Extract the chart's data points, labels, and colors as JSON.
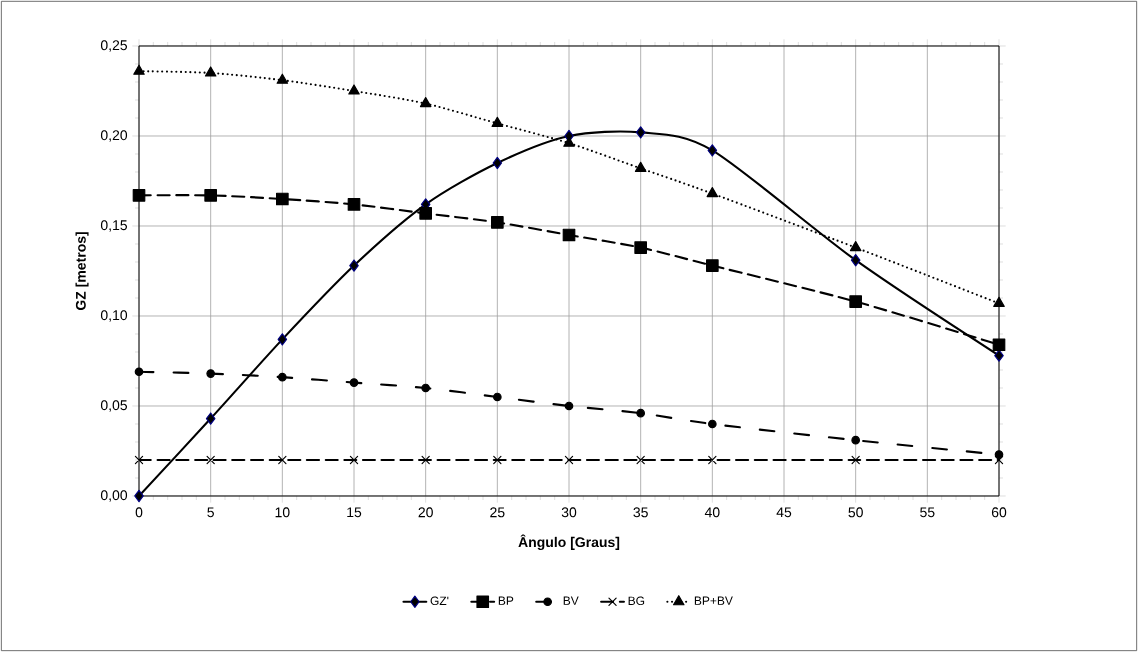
{
  "chart_data": {
    "type": "line",
    "xlabel": "Ângulo [Graus]",
    "ylabel": "GZ [metros]",
    "x": [
      0,
      5,
      10,
      15,
      20,
      25,
      30,
      35,
      40,
      50,
      60
    ],
    "series": [
      {
        "name": "GZ'",
        "color": "#000080",
        "marker": "diamond",
        "line_style": "solid",
        "values": [
          0.0,
          0.043,
          0.087,
          0.128,
          0.162,
          0.185,
          0.2,
          0.202,
          0.192,
          0.131,
          0.078
        ]
      },
      {
        "name": "BP",
        "color": "#000000",
        "marker": "square",
        "line_style": "dashed",
        "values": [
          0.167,
          0.167,
          0.165,
          0.162,
          0.157,
          0.152,
          0.145,
          0.138,
          0.128,
          0.108,
          0.084
        ]
      },
      {
        "name": "BV",
        "color": "#000000",
        "marker": "circle",
        "line_style": "dashdotted",
        "values": [
          0.069,
          0.068,
          0.066,
          0.063,
          0.06,
          0.055,
          0.05,
          0.046,
          0.04,
          0.031,
          0.023
        ]
      },
      {
        "name": "BG",
        "color": "#000000",
        "marker": "cross",
        "line_style": "dashed",
        "values": [
          0.02,
          0.02,
          0.02,
          0.02,
          0.02,
          0.02,
          0.02,
          0.02,
          0.02,
          0.02,
          0.02
        ]
      },
      {
        "name": "BP+BV",
        "color": "#000000",
        "marker": "triangle",
        "line_style": "dotted",
        "values": [
          0.236,
          0.235,
          0.231,
          0.225,
          0.218,
          0.207,
          0.196,
          0.182,
          0.168,
          0.138,
          0.107
        ]
      }
    ],
    "xlim": [
      0,
      60
    ],
    "xticks": [
      0,
      5,
      10,
      15,
      20,
      25,
      30,
      35,
      40,
      45,
      50,
      55,
      60
    ],
    "ylim": [
      0,
      0.25
    ],
    "yticks": [
      {
        "value": 0,
        "label": "0,00"
      },
      {
        "value": 0.05,
        "label": "0,05"
      },
      {
        "value": 0.1,
        "label": "0,10"
      },
      {
        "value": 0.15,
        "label": "0,15"
      },
      {
        "value": 0.2,
        "label": "0,20"
      },
      {
        "value": 0.25,
        "label": "0,25"
      }
    ],
    "grid": true,
    "legend": "bottom"
  }
}
